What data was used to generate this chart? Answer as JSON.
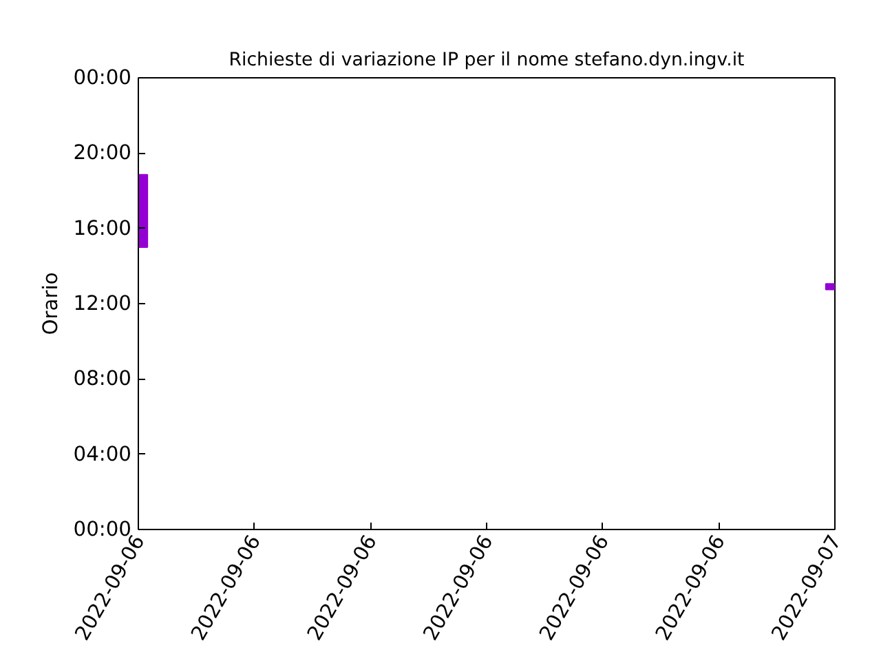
{
  "chart_data": {
    "type": "bar",
    "title": "Richieste di variazione IP per il nome stefano.dyn.ingv.it",
    "ylabel": "Orario",
    "x": [
      "2022-09-06T00:00",
      "2022-09-07T00:00"
    ],
    "base": [
      15.0,
      12.75
    ],
    "values": [
      3.85,
      0.3
    ],
    "color": "#9400d3",
    "xlim": [
      "2022-09-06T00:00",
      "2022-09-07T00:00"
    ],
    "xticks": [
      {
        "value": "2022-09-06T00:00",
        "label": "2022-09-06"
      },
      {
        "value": "2022-09-06T04:00",
        "label": "2022-09-06"
      },
      {
        "value": "2022-09-06T08:00",
        "label": "2022-09-06"
      },
      {
        "value": "2022-09-06T12:00",
        "label": "2022-09-06"
      },
      {
        "value": "2022-09-06T16:00",
        "label": "2022-09-06"
      },
      {
        "value": "2022-09-06T20:00",
        "label": "2022-09-06"
      },
      {
        "value": "2022-09-07T00:00",
        "label": "2022-09-07"
      }
    ],
    "ylim": [
      0,
      24
    ],
    "yticks": [
      {
        "value": 0,
        "label": "00:00"
      },
      {
        "value": 4,
        "label": "04:00"
      },
      {
        "value": 8,
        "label": "08:00"
      },
      {
        "value": 12,
        "label": "12:00"
      },
      {
        "value": 16,
        "label": "16:00"
      },
      {
        "value": 20,
        "label": "20:00"
      },
      {
        "value": 24,
        "label": "00:00"
      }
    ],
    "grid": false
  }
}
